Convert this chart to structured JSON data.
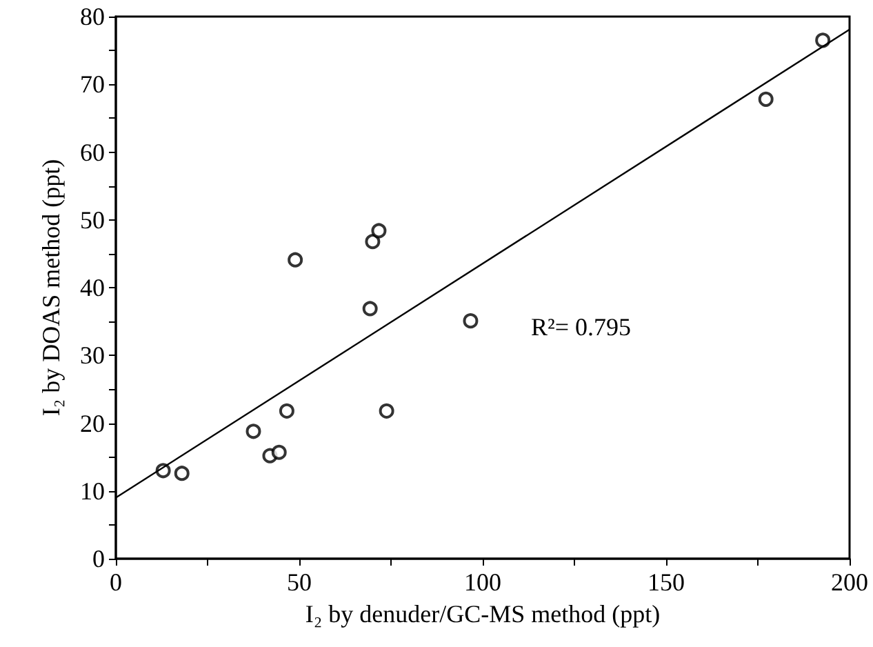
{
  "chart_data": {
    "type": "scatter",
    "xlabel": "I₂ by denuder/GC-MS method (ppt)",
    "ylabel": "I₂ by DOAS method (ppt)",
    "xlim": [
      0,
      200
    ],
    "ylim": [
      0,
      80
    ],
    "xticks": [
      0,
      {
        "value": 25,
        "label": null
      },
      50,
      {
        "value": 75,
        "label": null
      },
      100,
      {
        "value": 125,
        "label": null
      },
      150,
      {
        "value": 175,
        "label": null
      },
      200
    ],
    "yticks": [
      0,
      {
        "value": 5,
        "label": null
      },
      10,
      {
        "value": 15,
        "label": null
      },
      20,
      {
        "value": 25,
        "label": null
      },
      30,
      {
        "value": 35,
        "label": null
      },
      40,
      {
        "value": 45,
        "label": null
      },
      50,
      {
        "value": 55,
        "label": null
      },
      60,
      {
        "value": 65,
        "label": null
      },
      70,
      {
        "value": 75,
        "label": null
      },
      80
    ],
    "grid": false,
    "series": [
      {
        "marker": "circle",
        "color": "#000000",
        "x": [
          12.9,
          18.0,
          37.5,
          42.0,
          44.5,
          46.6,
          48.9,
          69.3,
          70.0,
          71.7,
          73.8,
          96.7,
          177.2,
          192.7
        ],
        "values": [
          13.0,
          12.6,
          18.8,
          15.2,
          15.7,
          21.8,
          44.1,
          36.9,
          46.8,
          48.4,
          21.8,
          35.1,
          67.8,
          76.5
        ]
      },
      {
        "type": "line",
        "marker": "none",
        "color": "#000000",
        "x": [
          0,
          200
        ],
        "values": [
          9.0,
          78.1
        ]
      }
    ],
    "annotations": [
      "R²= 0.795"
    ]
  }
}
